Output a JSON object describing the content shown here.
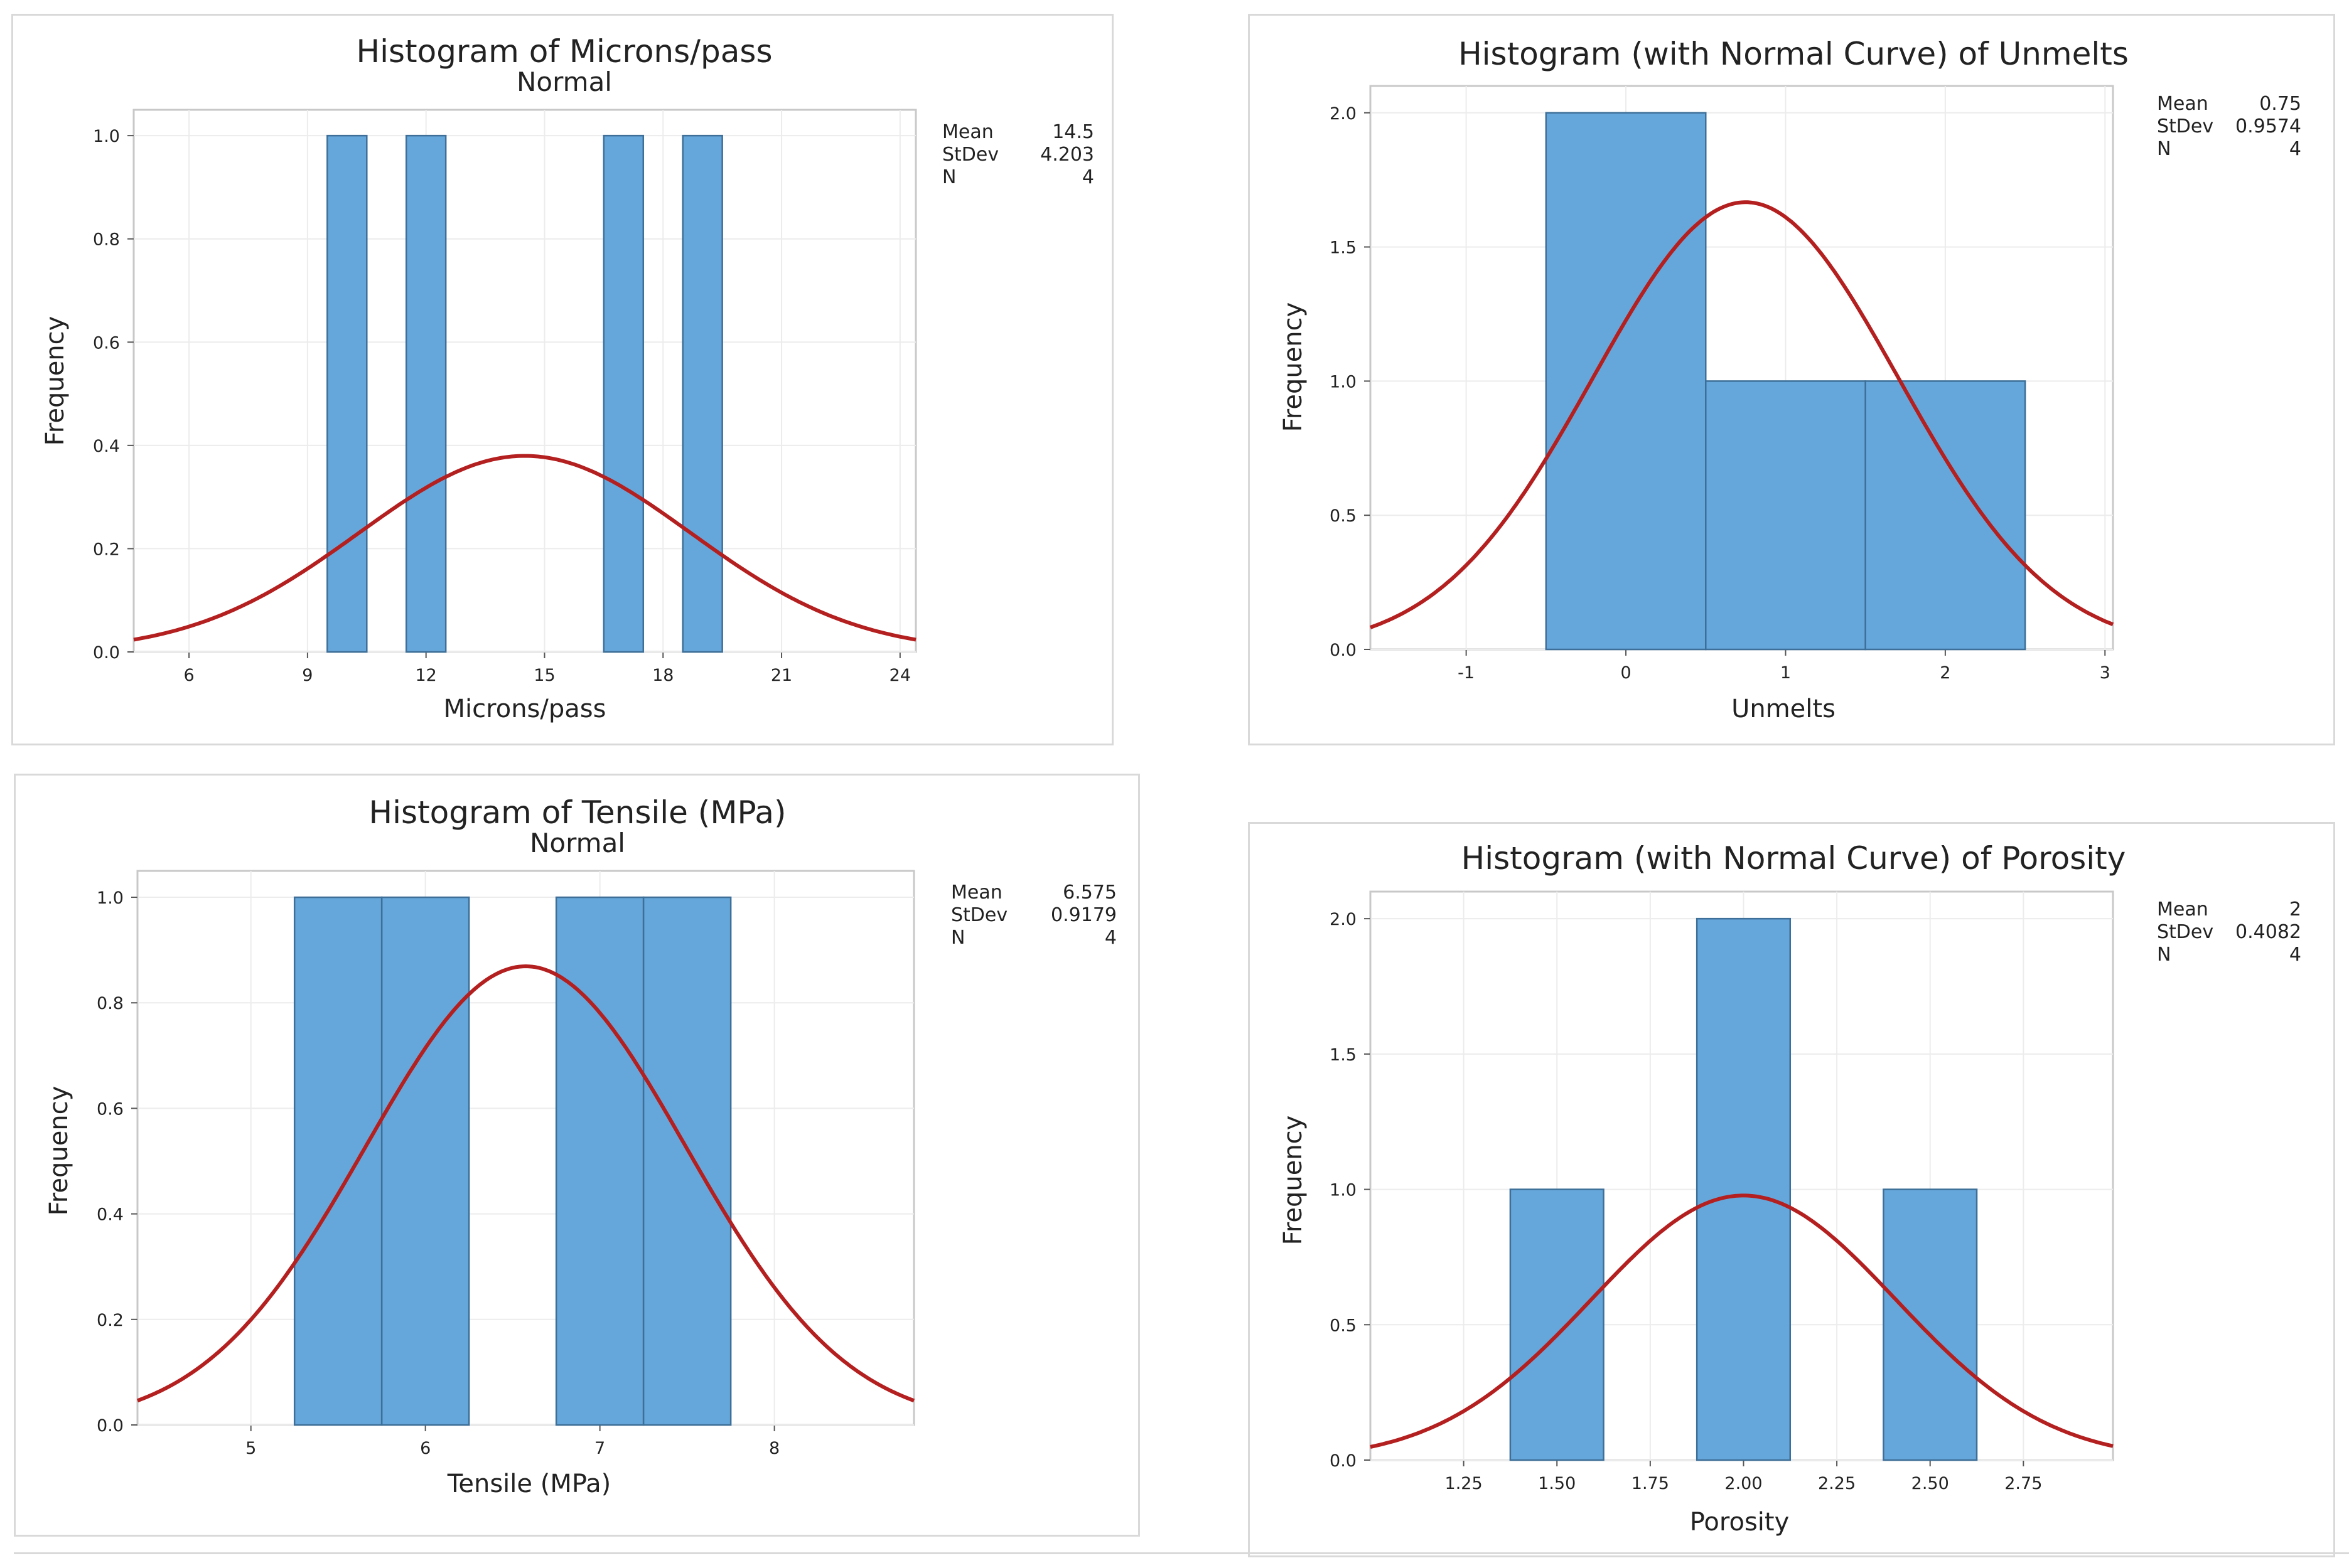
{
  "chart_data": [
    {
      "type": "histogram",
      "title": "Histogram of Microns/pass",
      "subtitle": "Normal",
      "xlabel": "Microns/pass",
      "ylabel": "Frequency",
      "xlim": [
        4.6,
        24.4
      ],
      "ylim": [
        0,
        1.05
      ],
      "xticks": [
        "6",
        "9",
        "12",
        "15",
        "18",
        "21",
        "24"
      ],
      "xtick_values": [
        6,
        9,
        12,
        15,
        18,
        21,
        24
      ],
      "yticks": [
        "0.0",
        "0.2",
        "0.4",
        "0.6",
        "0.8",
        "1.0"
      ],
      "ytick_values": [
        0,
        0.2,
        0.4,
        0.6,
        0.8,
        1.0
      ],
      "bins": [
        {
          "from": 9.5,
          "to": 10.5,
          "count": 1
        },
        {
          "from": 11.5,
          "to": 12.5,
          "count": 1
        },
        {
          "from": 16.5,
          "to": 17.5,
          "count": 1
        },
        {
          "from": 18.5,
          "to": 19.5,
          "count": 1
        }
      ],
      "normal_curve": {
        "mean": 14.5,
        "stdev": 4.203,
        "n": 4,
        "bin_width": 1
      },
      "stats": [
        {
          "label": "Mean",
          "value": "14.5"
        },
        {
          "label": "StDev",
          "value": "4.203"
        },
        {
          "label": "N",
          "value": "4"
        }
      ]
    },
    {
      "type": "histogram",
      "title": "Histogram (with Normal Curve) of Unmelts",
      "subtitle": "",
      "xlabel": "Unmelts",
      "ylabel": "Frequency",
      "xlim": [
        -1.6,
        3.05
      ],
      "ylim": [
        0,
        2.1
      ],
      "xticks": [
        "-1",
        "0",
        "1",
        "2",
        "3"
      ],
      "xtick_values": [
        -1,
        0,
        1,
        2,
        3
      ],
      "yticks": [
        "0.0",
        "0.5",
        "1.0",
        "1.5",
        "2.0"
      ],
      "ytick_values": [
        0,
        0.5,
        1.0,
        1.5,
        2.0
      ],
      "bins": [
        {
          "from": -0.5,
          "to": 0.5,
          "count": 2
        },
        {
          "from": 0.5,
          "to": 1.5,
          "count": 1
        },
        {
          "from": 1.5,
          "to": 2.5,
          "count": 1
        }
      ],
      "normal_curve": {
        "mean": 0.75,
        "stdev": 0.9574,
        "n": 4,
        "bin_width": 1
      },
      "stats": [
        {
          "label": "Mean",
          "value": "0.75"
        },
        {
          "label": "StDev",
          "value": "0.9574"
        },
        {
          "label": "N",
          "value": "4"
        }
      ]
    },
    {
      "type": "histogram",
      "title": "Histogram of Tensile (MPa)",
      "subtitle": "Normal",
      "xlabel": "Tensile (MPa)",
      "ylabel": "Frequency",
      "xlim": [
        4.35,
        8.8
      ],
      "ylim": [
        0,
        1.05
      ],
      "xticks": [
        "5",
        "6",
        "7",
        "8"
      ],
      "xtick_values": [
        5,
        6,
        7,
        8
      ],
      "yticks": [
        "0.0",
        "0.2",
        "0.4",
        "0.6",
        "0.8",
        "1.0"
      ],
      "ytick_values": [
        0,
        0.2,
        0.4,
        0.6,
        0.8,
        1.0
      ],
      "bins": [
        {
          "from": 5.25,
          "to": 5.75,
          "count": 1
        },
        {
          "from": 5.75,
          "to": 6.25,
          "count": 1
        },
        {
          "from": 6.75,
          "to": 7.25,
          "count": 1
        },
        {
          "from": 7.25,
          "to": 7.75,
          "count": 1
        }
      ],
      "normal_curve": {
        "mean": 6.575,
        "stdev": 0.9179,
        "n": 4,
        "bin_width": 0.5
      },
      "stats": [
        {
          "label": "Mean",
          "value": "6.575"
        },
        {
          "label": "StDev",
          "value": "0.9179"
        },
        {
          "label": "N",
          "value": "4"
        }
      ]
    },
    {
      "type": "histogram",
      "title": "Histogram (with Normal Curve) of Porosity",
      "subtitle": "",
      "xlabel": "Porosity",
      "ylabel": "Frequency",
      "xlim": [
        1.0,
        2.99
      ],
      "ylim": [
        0,
        2.1
      ],
      "xticks": [
        "1.25",
        "1.50",
        "1.75",
        "2.00",
        "2.25",
        "2.50",
        "2.75"
      ],
      "xtick_values": [
        1.25,
        1.5,
        1.75,
        2.0,
        2.25,
        2.5,
        2.75
      ],
      "yticks": [
        "0.0",
        "0.5",
        "1.0",
        "1.5",
        "2.0"
      ],
      "ytick_values": [
        0,
        0.5,
        1.0,
        1.5,
        2.0
      ],
      "bins": [
        {
          "from": 1.375,
          "to": 1.625,
          "count": 1
        },
        {
          "from": 1.875,
          "to": 2.125,
          "count": 2
        },
        {
          "from": 2.375,
          "to": 2.625,
          "count": 1
        }
      ],
      "normal_curve": {
        "mean": 2.0,
        "stdev": 0.4082,
        "n": 4,
        "bin_width": 0.25
      },
      "stats": [
        {
          "label": "Mean",
          "value": "2"
        },
        {
          "label": "StDev",
          "value": "0.4082"
        },
        {
          "label": "N",
          "value": "4"
        }
      ]
    }
  ],
  "colors": {
    "bar_fill": "#66a7db",
    "bar_edge": "#3d6f98",
    "curve": "#b41f1f",
    "grid": "#ececec",
    "frame": "#c8c8c8"
  }
}
